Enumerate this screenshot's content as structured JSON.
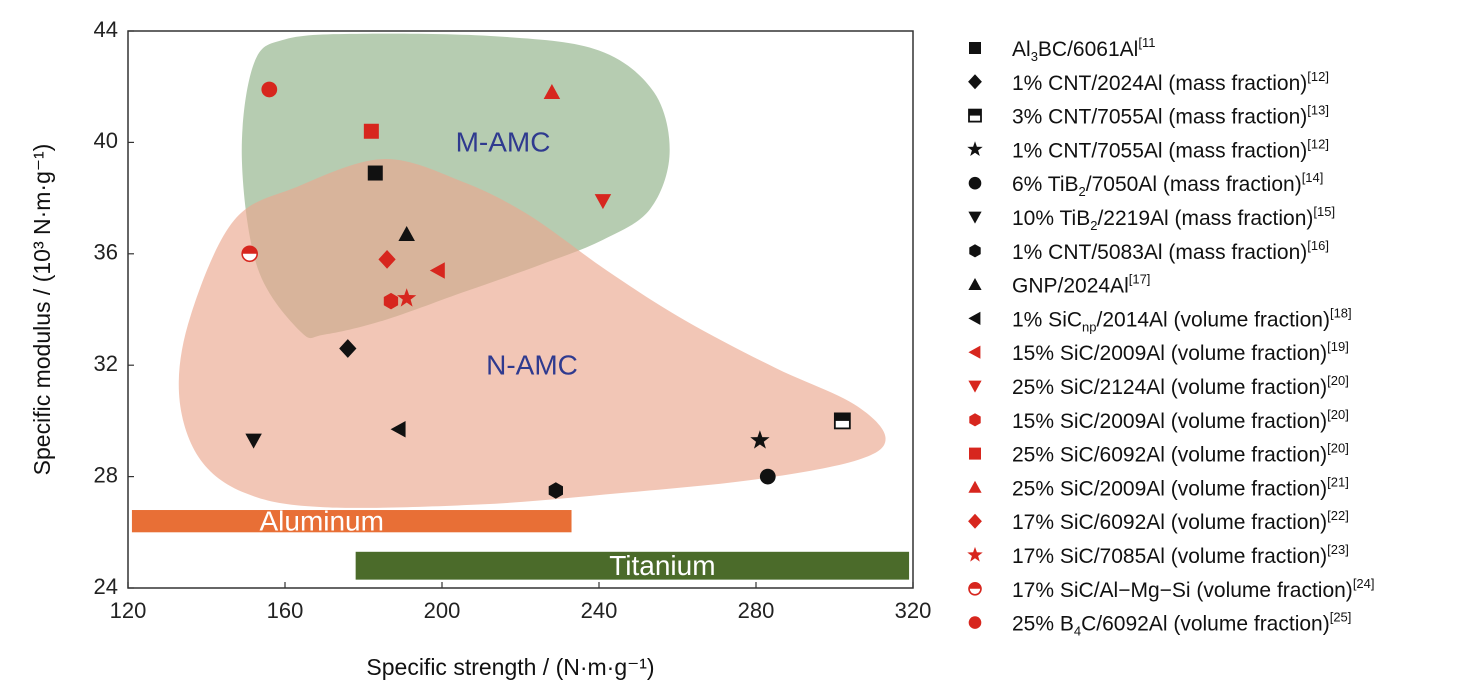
{
  "chart_data": {
    "type": "scatter",
    "xlabel": "Specific strength / (N·m·g⁻¹)",
    "ylabel": "Specific modulus / (10³ N·m·g⁻¹)",
    "xlim": [
      120,
      320
    ],
    "ylim": [
      24,
      44
    ],
    "xticks": [
      "120",
      "160",
      "200",
      "240",
      "280",
      "320"
    ],
    "yticks": [
      "24",
      "28",
      "32",
      "36",
      "40",
      "44"
    ],
    "grid": false,
    "legend_position": "right",
    "colors": {
      "black": "#111111",
      "red": "#d7261e",
      "m_amc": "#a9c3a3",
      "n_amc": "#eba88f",
      "aluminum": "#e86f36",
      "titanium": "#4b6b2a"
    },
    "regions": [
      {
        "label": "M-AMC",
        "color": "#a9c3a3",
        "boundary": [
          [
            164,
            33.2
          ],
          [
            153,
            35.5
          ],
          [
            149,
            39.5
          ],
          [
            152,
            42.8
          ],
          [
            160,
            43.7
          ],
          [
            180,
            43.9
          ],
          [
            215,
            43.8
          ],
          [
            240,
            43.3
          ],
          [
            254,
            41.8
          ],
          [
            258,
            39.6
          ],
          [
            253,
            37.6
          ],
          [
            241,
            36.5
          ],
          [
            225,
            35.6
          ],
          [
            205,
            34.6
          ],
          [
            185,
            33.6
          ],
          [
            170,
            33.1
          ]
        ]
      },
      {
        "label": "N-AMC",
        "color": "#eba88f",
        "boundary": [
          [
            136,
            33.8
          ],
          [
            147,
            37.2
          ],
          [
            163,
            38.4
          ],
          [
            185,
            39.4
          ],
          [
            205,
            38.6
          ],
          [
            222,
            37.4
          ],
          [
            242,
            35.4
          ],
          [
            262,
            33.6
          ],
          [
            285,
            31.9
          ],
          [
            305,
            30.6
          ],
          [
            313,
            29.4
          ],
          [
            306,
            28.6
          ],
          [
            280,
            27.9
          ],
          [
            245,
            27.4
          ],
          [
            210,
            27.0
          ],
          [
            170,
            26.9
          ],
          [
            150,
            27.4
          ],
          [
            138,
            28.7
          ],
          [
            133,
            31.0
          ]
        ]
      }
    ],
    "bars": [
      {
        "label": "Aluminum",
        "x_start": 121,
        "x_end": 233,
        "y_low": 26.0,
        "y_high": 26.8,
        "color": "#e86f36",
        "label_align": "center"
      },
      {
        "label": "Titanium",
        "x_start": 178,
        "x_end": 319,
        "y_low": 24.3,
        "y_high": 25.3,
        "color": "#4b6b2a",
        "label_align": "center"
      }
    ],
    "series": [
      {
        "name_main": "Al",
        "name_sub": "3",
        "name_rest": "BC/6061Al",
        "ref": "[11",
        "marker": "square",
        "color": "#111111",
        "points": [
          [
            183,
            38.9
          ]
        ]
      },
      {
        "name_main": "1% CNT/2024Al (mass fraction)",
        "name_sub": "",
        "name_rest": "",
        "ref": "[12]",
        "marker": "diamond",
        "color": "#111111",
        "points": [
          [
            176,
            32.6
          ]
        ]
      },
      {
        "name_main": "3% CNT/7055Al (mass fraction)",
        "name_sub": "",
        "name_rest": "",
        "ref": "[13]",
        "marker": "half-square",
        "color": "#111111",
        "points": [
          [
            302,
            30.0
          ]
        ]
      },
      {
        "name_main": "1% CNT/7055Al (mass fraction)",
        "name_sub": "",
        "name_rest": "",
        "ref": "[12]",
        "marker": "star",
        "color": "#111111",
        "points": [
          [
            281,
            29.3
          ]
        ]
      },
      {
        "name_main": "6% TiB",
        "name_sub": "2",
        "name_rest": "/7050Al (mass fraction)",
        "ref": "[14]",
        "marker": "circle",
        "color": "#111111",
        "points": [
          [
            283,
            28.0
          ]
        ]
      },
      {
        "name_main": "10% TiB",
        "name_sub": "2",
        "name_rest": "/2219Al (mass fraction)",
        "ref": "[15]",
        "marker": "triangle-down",
        "color": "#111111",
        "points": [
          [
            152,
            29.3
          ]
        ]
      },
      {
        "name_main": "1% CNT/5083Al (mass fraction)",
        "name_sub": "",
        "name_rest": "",
        "ref": "[16]",
        "marker": "hexagon",
        "color": "#111111",
        "points": [
          [
            229,
            27.5
          ]
        ]
      },
      {
        "name_main": "GNP/2024Al",
        "name_sub": "",
        "name_rest": "",
        "ref": "[17]",
        "marker": "triangle-up",
        "color": "#111111",
        "points": [
          [
            191,
            36.7
          ]
        ]
      },
      {
        "name_main": "1% SiC",
        "name_sub": "np",
        "name_rest": "/2014Al (volume fraction)",
        "ref": "[18]",
        "marker": "triangle-left",
        "color": "#111111",
        "points": [
          [
            189,
            29.7
          ]
        ]
      },
      {
        "name_main": "15% SiC/2009Al (volume fraction)",
        "name_sub": "",
        "name_rest": "",
        "ref": "[19]",
        "marker": "triangle-left",
        "color": "#d7261e",
        "points": [
          [
            199,
            35.4
          ]
        ]
      },
      {
        "name_main": "25% SiC/2124Al (volume fraction)",
        "name_sub": "",
        "name_rest": "",
        "ref": "[20]",
        "marker": "triangle-down",
        "color": "#d7261e",
        "points": [
          [
            241,
            37.9
          ]
        ]
      },
      {
        "name_main": "15% SiC/2009Al (volume fraction)",
        "name_sub": "",
        "name_rest": "",
        "ref": "[20]",
        "marker": "hexagon",
        "color": "#d7261e",
        "points": [
          [
            187,
            34.3
          ]
        ]
      },
      {
        "name_main": "25% SiC/6092Al (volume fraction)",
        "name_sub": "",
        "name_rest": "",
        "ref": "[20]",
        "marker": "square",
        "color": "#d7261e",
        "points": [
          [
            182,
            40.4
          ]
        ]
      },
      {
        "name_main": "25% SiC/2009Al (volume fraction)",
        "name_sub": "",
        "name_rest": "",
        "ref": "[21]",
        "marker": "triangle-up",
        "color": "#d7261e",
        "points": [
          [
            228,
            41.8
          ]
        ]
      },
      {
        "name_main": "17% SiC/6092Al (volume fraction)",
        "name_sub": "",
        "name_rest": "",
        "ref": "[22]",
        "marker": "diamond",
        "color": "#d7261e",
        "points": [
          [
            186,
            35.8
          ]
        ]
      },
      {
        "name_main": "17% SiC/7085Al (volume fraction)",
        "name_sub": "",
        "name_rest": "",
        "ref": "[23]",
        "marker": "star",
        "color": "#d7261e",
        "points": [
          [
            191,
            34.4
          ]
        ]
      },
      {
        "name_main": "17% SiC/Al−Mg−Si  (volume fraction)",
        "name_sub": "",
        "name_rest": "",
        "ref": "[24]",
        "marker": "half-circle",
        "color": "#d7261e",
        "points": [
          [
            151,
            36.0
          ]
        ]
      },
      {
        "name_main": "25% B",
        "name_sub": "4",
        "name_rest": "C/6092Al  (volume fraction)",
        "ref": "[25]",
        "marker": "circle",
        "color": "#d7261e",
        "points": [
          [
            156,
            41.9
          ]
        ]
      }
    ]
  }
}
